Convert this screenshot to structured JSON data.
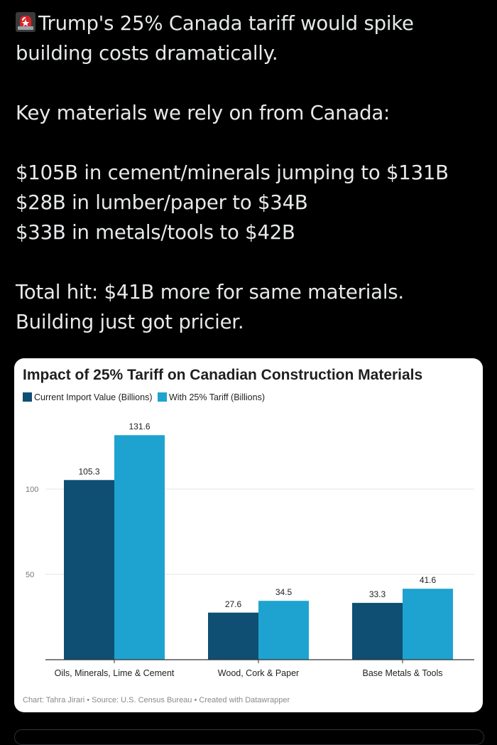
{
  "tweet": {
    "siren_icon": "rotating-light-emoji",
    "line1": "Trump's 25% Canada tariff would spike",
    "line2": "building costs dramatically.",
    "line3": "Key materials we rely on from Canada:",
    "line4": "$105B in cement/minerals jumping to $131B",
    "line5": "$28B in lumber/paper to $34B",
    "line6": "$33B in metals/tools to $42B",
    "line7": "Total hit: $41B more for same materials.",
    "line8": "Building just got pricier."
  },
  "colors": {
    "series_current": "#0e4f73",
    "series_tariff": "#1ea3d0",
    "gridline": "#e6e6e6",
    "axis": "#333333"
  },
  "chart_data": {
    "type": "bar",
    "title": "Impact of 25% Tariff on Canadian Construction Materials",
    "categories": [
      "Oils, Minerals, Lime & Cement",
      "Wood, Cork & Paper",
      "Base Metals & Tools"
    ],
    "series": [
      {
        "name": "Current Import Value (Billions)",
        "values": [
          105.3,
          27.6,
          33.3
        ],
        "labels": [
          "105.3",
          "27.6",
          "33.3"
        ]
      },
      {
        "name": "With 25% Tariff (Billions)",
        "values": [
          131.6,
          34.5,
          41.6
        ],
        "labels": [
          "131.6",
          "34.5",
          "41.6"
        ]
      }
    ],
    "yticks": [
      50,
      100
    ],
    "ytick_labels": [
      "50",
      "100"
    ],
    "ylim": [
      0,
      150
    ],
    "legend_position": "top-left",
    "source": "Chart: Tahra Jirari • Source: U.S. Census Bureau • Created with Datawrapper"
  }
}
